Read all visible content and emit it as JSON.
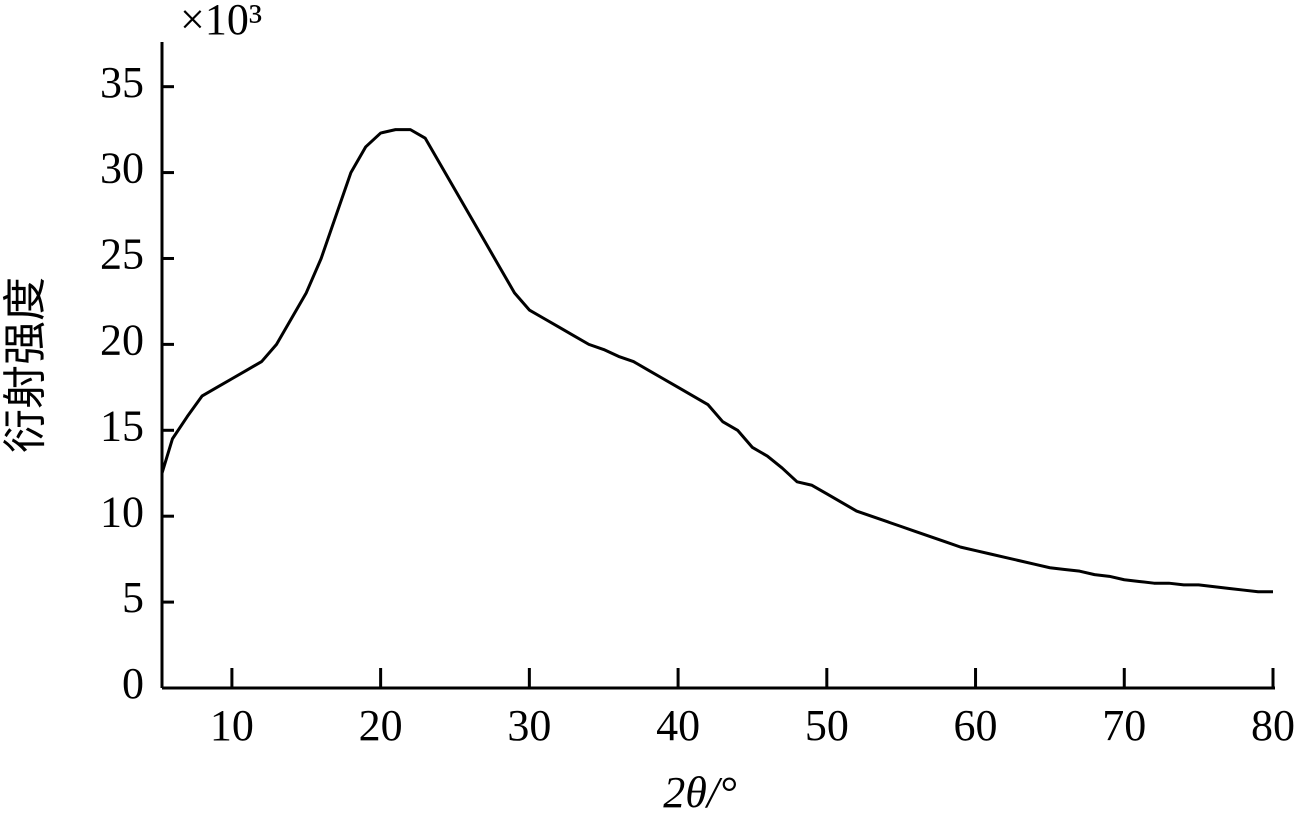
{
  "chart_data": {
    "type": "line",
    "annotation": "×10³",
    "ylabel": "衍射强度",
    "xlabel": "2θ/°",
    "xlim": [
      5.3,
      80
    ],
    "xticks": [
      10,
      20,
      30,
      40,
      50,
      60,
      70,
      80
    ],
    "ylim": [
      0,
      37.6
    ],
    "yticks": [
      0,
      5,
      10,
      15,
      20,
      25,
      30,
      35
    ],
    "x": [
      5.3,
      6,
      7,
      8,
      9,
      10,
      11,
      12,
      13,
      14,
      15,
      16,
      17,
      18,
      19,
      20,
      21,
      22,
      23,
      24,
      25,
      26,
      27,
      28,
      29,
      30,
      31,
      32,
      33,
      34,
      35,
      36,
      37,
      38,
      39,
      40,
      41,
      42,
      43,
      44,
      45,
      46,
      47,
      48,
      49,
      50,
      51,
      52,
      53,
      54,
      55,
      56,
      57,
      58,
      59,
      60,
      61,
      62,
      63,
      64,
      65,
      66,
      67,
      68,
      69,
      70,
      71,
      72,
      73,
      74,
      75,
      76,
      77,
      78,
      79,
      80
    ],
    "series": [
      {
        "color": "#000000",
        "values": [
          12.5,
          14.5,
          15.8,
          17,
          17.5,
          18,
          18.5,
          19,
          20,
          21.5,
          23,
          25,
          27.5,
          30,
          31.5,
          32.3,
          32.5,
          32.5,
          32,
          30.5,
          29,
          27.5,
          26,
          24.5,
          23,
          22,
          21.5,
          21,
          20.5,
          20,
          19.7,
          19.3,
          19,
          18.5,
          18,
          17.5,
          17,
          16.5,
          15.5,
          15,
          14,
          13.5,
          12.8,
          12,
          11.8,
          11.3,
          10.8,
          10.3,
          10,
          9.7,
          9.4,
          9.1,
          8.8,
          8.5,
          8.2,
          8,
          7.8,
          7.6,
          7.4,
          7.2,
          7,
          6.9,
          6.8,
          6.6,
          6.5,
          6.3,
          6.2,
          6.1,
          6.1,
          6,
          6,
          5.9,
          5.8,
          5.7,
          5.6,
          5.6
        ]
      }
    ]
  }
}
